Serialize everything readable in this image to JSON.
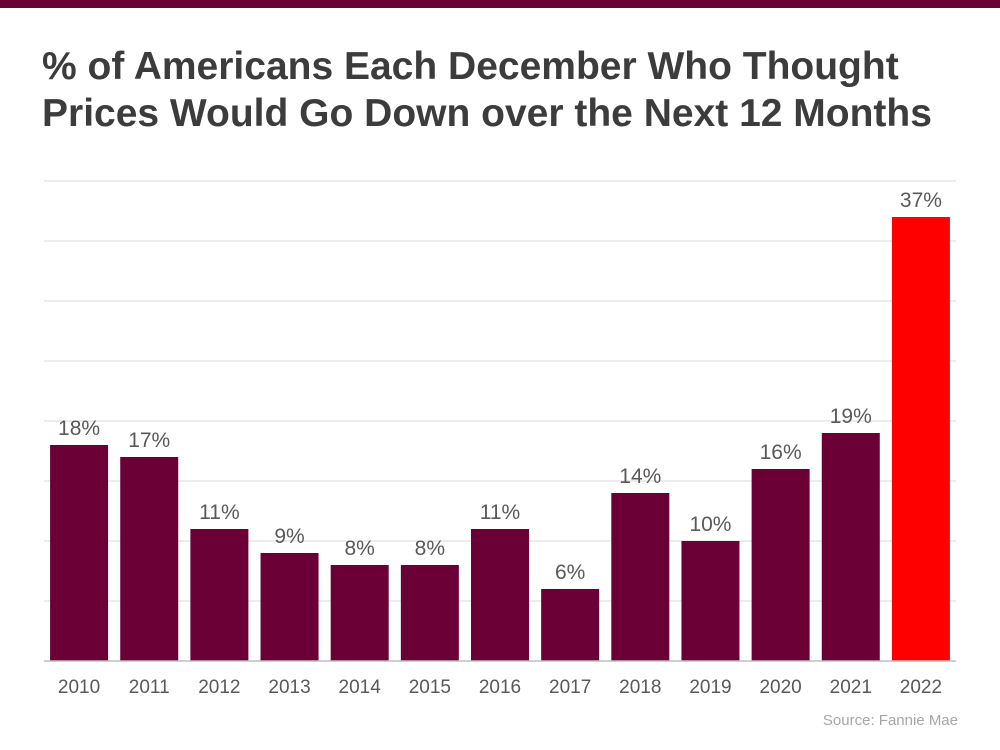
{
  "header": {
    "title_line1": "% of Americans Each December Who Thought",
    "title_line2": "Prices Would Go Down over the Next 12 Months"
  },
  "footer": {
    "source": "Source: Fannie Mae"
  },
  "colors": {
    "bar": "#6a0035",
    "highlight": "#ff0000",
    "grid": "#d9d9d9",
    "text": "#595959"
  },
  "chart_data": {
    "type": "bar",
    "title": "% of Americans Each December Who Thought Prices Would Go Down over the Next 12 Months",
    "categories": [
      "2010",
      "2011",
      "2012",
      "2013",
      "2014",
      "2015",
      "2016",
      "2017",
      "2018",
      "2019",
      "2020",
      "2021",
      "2022"
    ],
    "values": [
      18,
      17,
      11,
      9,
      8,
      8,
      11,
      6,
      14,
      10,
      16,
      19,
      37
    ],
    "data_labels": [
      "18%",
      "17%",
      "11%",
      "9%",
      "8%",
      "8%",
      "11%",
      "6%",
      "14%",
      "10%",
      "16%",
      "19%",
      "37%"
    ],
    "highlight_category": "2022",
    "ylim": [
      0,
      40
    ],
    "grid": true,
    "xlabel": "",
    "ylabel": ""
  }
}
